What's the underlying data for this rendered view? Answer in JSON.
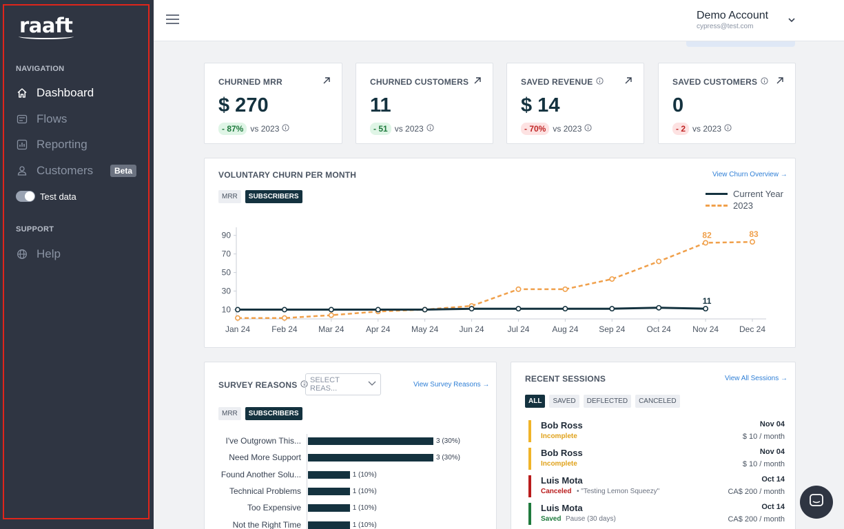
{
  "brand": {
    "logo_text": "raaft"
  },
  "sidebar": {
    "navigation_heading": "NAVIGATION",
    "items": [
      {
        "label": "Dashboard",
        "icon": "home-icon",
        "active": true
      },
      {
        "label": "Flows",
        "icon": "flows-icon",
        "active": false
      },
      {
        "label": "Reporting",
        "icon": "reporting-icon",
        "active": false
      },
      {
        "label": "Customers",
        "icon": "user-icon",
        "active": false,
        "badge": "Beta"
      }
    ],
    "test_data_label": "Test data",
    "support_heading": "SUPPORT",
    "help_label": "Help"
  },
  "header": {
    "account_name": "Demo Account",
    "account_email": "cypress@test.com"
  },
  "stats": [
    {
      "title": "CHURNED MRR",
      "value": "$ 270",
      "delta": "- 87%",
      "delta_tone": "green",
      "compare": "vs 2023",
      "has_info": false
    },
    {
      "title": "CHURNED CUSTOMERS",
      "value": "11",
      "delta": "- 51",
      "delta_tone": "green",
      "compare": "vs 2023",
      "has_info": false
    },
    {
      "title": "SAVED REVENUE",
      "value": "$ 14",
      "delta": "- 70%",
      "delta_tone": "red",
      "compare": "vs 2023",
      "has_info": true
    },
    {
      "title": "SAVED CUSTOMERS",
      "value": "0",
      "delta": "- 2",
      "delta_tone": "red",
      "compare": "vs 2023",
      "has_info": true
    }
  ],
  "churn_chart": {
    "title": "VOLUNTARY CHURN PER MONTH",
    "link": "View Churn Overview →",
    "toggle": [
      "MRR",
      "SUBSCRIBERS"
    ],
    "active_toggle": "SUBSCRIBERS"
  },
  "survey": {
    "title": "SURVEY REASONS",
    "select_placeholder": "SELECT REAS...",
    "link": "View Survey Reasons →",
    "toggle": [
      "MRR",
      "SUBSCRIBERS"
    ],
    "active_toggle": "SUBSCRIBERS"
  },
  "sessions": {
    "title": "RECENT SESSIONS",
    "link": "View All Sessions →",
    "filters": [
      "ALL",
      "SAVED",
      "DEFLECTED",
      "CANCELED"
    ],
    "active_filter": "ALL",
    "items": [
      {
        "name": "Bob Ross",
        "status": "Incomplete",
        "status_color": "#e0a21b",
        "extra": "",
        "date": "Nov 04",
        "amount": "$ 10 / month"
      },
      {
        "name": "Bob Ross",
        "status": "Incomplete",
        "status_color": "#e0a21b",
        "extra": "",
        "date": "Nov 04",
        "amount": "$ 10 / month"
      },
      {
        "name": "Luis Mota",
        "status": "Canceled",
        "status_color": "#b91c1c",
        "extra": "•   \"Testing Lemon Squeezy\"",
        "date": "Oct 14",
        "amount": "CA$ 200 / month"
      },
      {
        "name": "Luis Mota",
        "status": "Saved",
        "status_color": "#1f7a3d",
        "extra": "Pause    (30 days)",
        "date": "Oct 14",
        "amount": "CA$ 200 / month"
      }
    ]
  },
  "chart_data": [
    {
      "type": "line",
      "title": "VOLUNTARY CHURN PER MONTH",
      "x": [
        "Jan 24",
        "Feb 24",
        "Mar 24",
        "Apr 24",
        "May 24",
        "Jun 24",
        "Jul 24",
        "Aug 24",
        "Sep 24",
        "Oct 24",
        "Nov 24",
        "Dec 24"
      ],
      "yticks": [
        10,
        30,
        50,
        70,
        90
      ],
      "ylim": [
        0,
        95
      ],
      "series": [
        {
          "name": "Current Year",
          "color": "#14323f",
          "style": "solid",
          "values": [
            10,
            10,
            10,
            10,
            10,
            11,
            11,
            11,
            11,
            12,
            11,
            null
          ]
        },
        {
          "name": "2023",
          "color": "#f0a04b",
          "style": "dashed",
          "values": [
            1,
            1,
            4,
            8,
            10,
            14,
            32,
            32,
            43,
            62,
            82,
            83
          ]
        }
      ],
      "data_labels": [
        {
          "series": "Current Year",
          "index": 10,
          "text": "11"
        },
        {
          "series": "2023",
          "index": 10,
          "text": "82"
        },
        {
          "series": "2023",
          "index": 11,
          "text": "83"
        }
      ],
      "legend": "top-right"
    },
    {
      "type": "bar",
      "orientation": "horizontal",
      "title": "SURVEY REASONS",
      "categories": [
        "I've Outgrown This...",
        "Need More Support",
        "Found Another Solu...",
        "Technical Problems",
        "Too Expensive",
        "Not the Right Time"
      ],
      "values": [
        3,
        3,
        1,
        1,
        1,
        1
      ],
      "labels": [
        "3 (30%)",
        "3 (30%)",
        "1 (10%)",
        "1 (10%)",
        "1 (10%)",
        "1 (10%)"
      ],
      "xlim": [
        0,
        3
      ]
    }
  ]
}
